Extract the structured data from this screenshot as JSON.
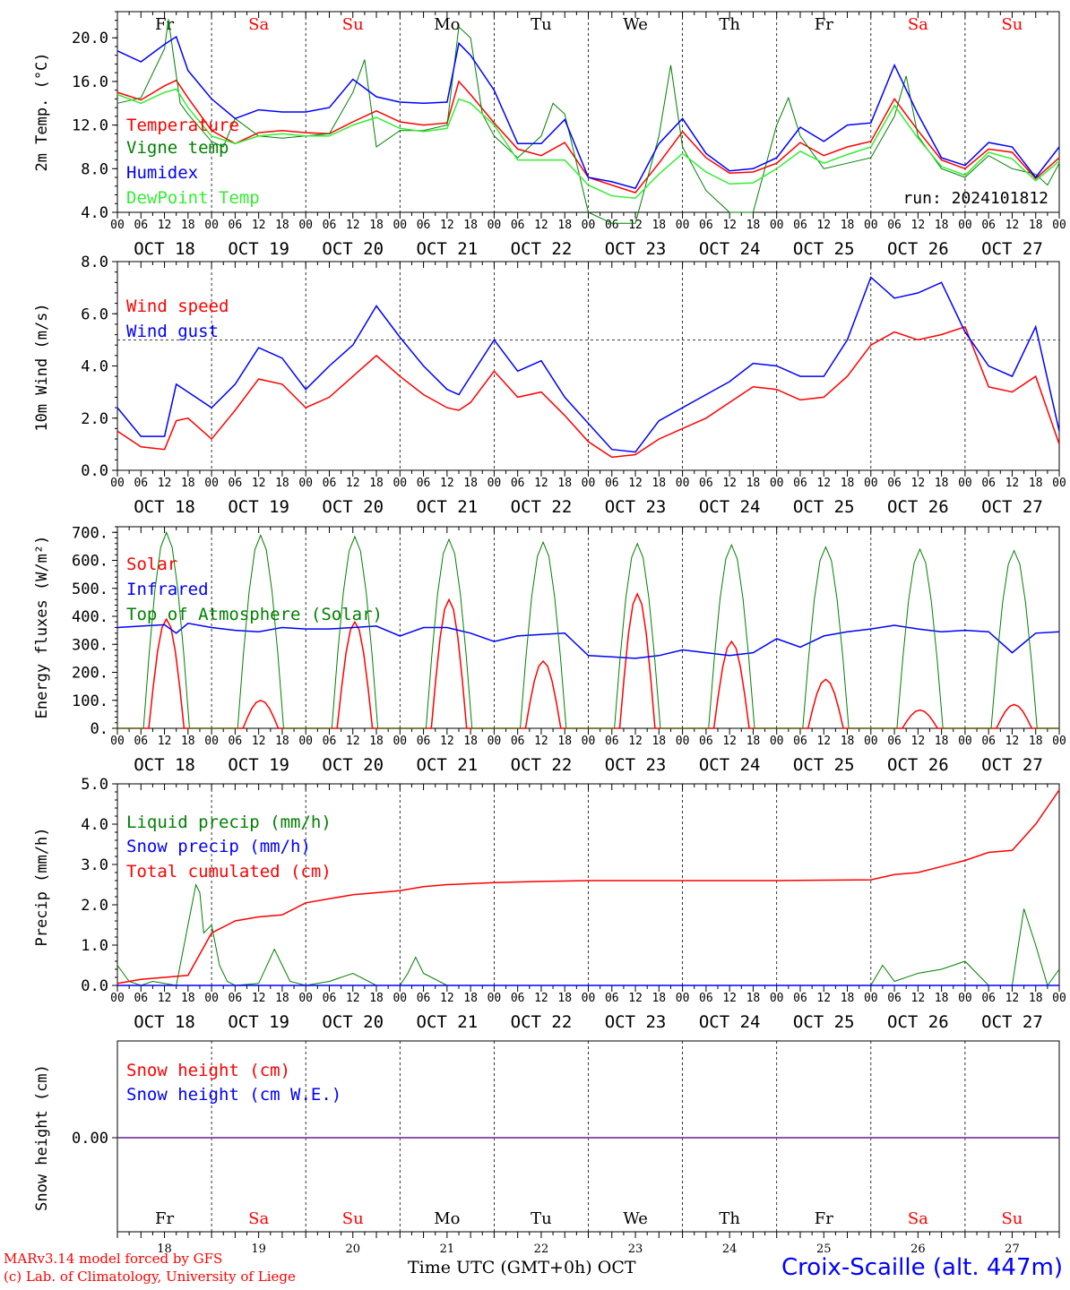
{
  "days": {
    "names": [
      "Fr",
      "Sa",
      "Su",
      "Mo",
      "Tu",
      "We",
      "Th",
      "Fr",
      "Sa",
      "Su"
    ],
    "weekend": [
      false,
      true,
      true,
      false,
      false,
      false,
      false,
      false,
      true,
      true
    ],
    "dates": [
      "OCT 18",
      "OCT 19",
      "OCT 20",
      "OCT 21",
      "OCT 22",
      "OCT 23",
      "OCT 24",
      "OCT 25",
      "OCT 26",
      "OCT 27"
    ],
    "numbers": [
      "18",
      "19",
      "20",
      "21",
      "22",
      "23",
      "24",
      "25",
      "26",
      "27"
    ],
    "hour_ticks": [
      "00",
      "06",
      "12",
      "18"
    ],
    "final_tick": "00"
  },
  "colors": {
    "red": "#ff0000",
    "green": "#008000",
    "blue": "#0000ff",
    "lightgreen": "#33ee33",
    "purple": "#7a3fa0",
    "weekend": "#ff0000"
  },
  "run_label": "run: 2024101812",
  "footer": {
    "model": "MARv3.14 model forced by GFS",
    "copyright": "(c) Lab. of Climatology, University of Liege",
    "axis_title": "Time UTC (GMT+0h)",
    "month": "OCT",
    "station": "Croix-Scaille (alt. 447m)"
  },
  "chart_data": [
    {
      "type": "line",
      "ylabel": "2m Temp. (°C)",
      "ylim": [
        4,
        22.4
      ],
      "yticks": [
        4,
        8,
        12,
        16,
        20
      ],
      "ytick_labels": [
        "4.0",
        "8.0",
        "12.0",
        "16.0",
        "20.0"
      ],
      "x_unit": "hours since OCT 18 00 UTC",
      "series": [
        {
          "name": "Temperature",
          "color": "#ff0000",
          "x": [
            0,
            6,
            12,
            15,
            18,
            24,
            30,
            36,
            42,
            48,
            54,
            60,
            66,
            72,
            78,
            84,
            87,
            90,
            96,
            102,
            108,
            114,
            120,
            126,
            132,
            138,
            144,
            150,
            156,
            162,
            168,
            174,
            180,
            186,
            192,
            198,
            204,
            210,
            216,
            222,
            228,
            234,
            240
          ],
          "y": [
            15,
            14.3,
            15.6,
            16.1,
            14.5,
            11.5,
            10.3,
            11.3,
            11.5,
            11.3,
            11.2,
            12.3,
            13.3,
            12.3,
            12,
            12.2,
            16,
            14.8,
            12.2,
            9.8,
            9.2,
            10.4,
            7.2,
            6.5,
            5.8,
            8.5,
            11.4,
            9,
            7.6,
            7.7,
            8.5,
            10.4,
            9.2,
            10,
            10.5,
            14.4,
            11.5,
            8.8,
            8,
            9.8,
            9.5,
            7.1,
            9
          ]
        },
        {
          "name": "Vigne temp",
          "color": "#008000",
          "x": [
            0,
            6,
            12,
            13,
            16,
            18,
            24,
            27,
            30,
            36,
            42,
            48,
            54,
            60,
            63,
            66,
            72,
            78,
            84,
            87,
            90,
            93,
            96,
            102,
            108,
            111,
            114,
            120,
            126,
            132,
            138,
            141,
            144,
            150,
            156,
            162,
            168,
            171,
            174,
            180,
            186,
            192,
            198,
            201,
            204,
            210,
            216,
            222,
            228,
            234,
            237,
            240
          ],
          "y": [
            14,
            14.5,
            19,
            21.7,
            14,
            13,
            10.5,
            10,
            12.6,
            11,
            10.8,
            11,
            11.2,
            15,
            18,
            10,
            11.5,
            11.5,
            12,
            21,
            20,
            13,
            11,
            9,
            11,
            14,
            13,
            4,
            3,
            3,
            11,
            17.5,
            10,
            6,
            4,
            4,
            12,
            14.5,
            11,
            8,
            8.5,
            9,
            12.8,
            16.5,
            11,
            8,
            7.2,
            9.2,
            8,
            7.5,
            6.5,
            8.5
          ]
        },
        {
          "name": "Humidex",
          "color": "#0000ff",
          "x": [
            0,
            6,
            12,
            15,
            18,
            24,
            30,
            36,
            42,
            48,
            54,
            60,
            66,
            72,
            78,
            84,
            87,
            90,
            96,
            102,
            108,
            114,
            120,
            126,
            132,
            138,
            144,
            150,
            156,
            162,
            168,
            174,
            180,
            186,
            192,
            198,
            204,
            210,
            216,
            222,
            228,
            234,
            240
          ],
          "y": [
            18.8,
            17.8,
            19.4,
            20.1,
            17,
            14.4,
            12.6,
            13.4,
            13.2,
            13.2,
            13.6,
            16.2,
            14.6,
            14.1,
            14,
            14.1,
            19.5,
            18.4,
            15.2,
            10.3,
            10.3,
            12.5,
            7.2,
            6.8,
            6.2,
            10.3,
            12.6,
            9.4,
            7.8,
            8,
            9,
            11.8,
            10.5,
            12,
            12.2,
            17.5,
            13,
            9,
            8.3,
            10.4,
            10,
            7.2,
            10
          ]
        },
        {
          "name": "DewPoint Temp",
          "color": "#33ee33",
          "x": [
            0,
            6,
            12,
            15,
            18,
            24,
            30,
            36,
            42,
            48,
            54,
            60,
            66,
            72,
            78,
            84,
            87,
            90,
            96,
            102,
            108,
            114,
            120,
            126,
            132,
            138,
            144,
            150,
            156,
            162,
            168,
            174,
            180,
            186,
            192,
            198,
            204,
            210,
            216,
            222,
            228,
            234,
            240
          ],
          "y": [
            14.8,
            14,
            15,
            15.3,
            13.6,
            11,
            10.3,
            11,
            11.2,
            11,
            11,
            12,
            12.7,
            11.7,
            11.4,
            11.7,
            14.4,
            14,
            12,
            8.8,
            8.8,
            8.8,
            6.5,
            5.5,
            5.3,
            7.5,
            9.4,
            7.7,
            6.6,
            6.7,
            8,
            9.6,
            8.5,
            9.3,
            10,
            13.8,
            10.8,
            8.2,
            7.4,
            9.5,
            8.9,
            6.9,
            8.7
          ]
        }
      ],
      "legend": [
        "Temperature",
        "Vigne temp",
        "Humidex",
        "DewPoint Temp"
      ]
    },
    {
      "type": "line",
      "ylabel": "10m Wind (m/s)",
      "ylim": [
        0,
        8
      ],
      "yticks": [
        0,
        2,
        4,
        6,
        8
      ],
      "ytick_labels": [
        "0.0",
        "2.0",
        "4.0",
        "6.0",
        "8.0"
      ],
      "reference_line": 5,
      "x_unit": "hours since OCT 18 00 UTC",
      "series": [
        {
          "name": "Wind speed",
          "color": "#ff0000",
          "x": [
            0,
            6,
            12,
            15,
            18,
            24,
            30,
            36,
            42,
            48,
            54,
            60,
            66,
            72,
            78,
            84,
            87,
            90,
            96,
            102,
            108,
            114,
            120,
            126,
            132,
            138,
            144,
            150,
            156,
            162,
            168,
            174,
            180,
            186,
            192,
            198,
            204,
            210,
            216,
            222,
            228,
            234,
            240
          ],
          "y": [
            1.5,
            0.9,
            0.8,
            1.9,
            2,
            1.2,
            2.3,
            3.5,
            3.3,
            2.4,
            2.8,
            3.6,
            4.4,
            3.6,
            2.9,
            2.4,
            2.3,
            2.6,
            3.8,
            2.8,
            3,
            2.1,
            1.1,
            0.5,
            0.6,
            1.2,
            1.6,
            2,
            2.6,
            3.2,
            3.1,
            2.7,
            2.8,
            3.6,
            4.8,
            5.3,
            5,
            5.2,
            5.5,
            3.2,
            3,
            3.6,
            1
          ]
        },
        {
          "name": "Wind gust",
          "color": "#0000ff",
          "x": [
            0,
            6,
            12,
            15,
            18,
            24,
            30,
            36,
            42,
            48,
            54,
            60,
            66,
            72,
            78,
            84,
            87,
            90,
            96,
            102,
            108,
            114,
            120,
            126,
            132,
            138,
            144,
            150,
            156,
            162,
            168,
            174,
            180,
            186,
            192,
            198,
            204,
            210,
            216,
            222,
            228,
            234,
            240
          ],
          "y": [
            2.4,
            1.3,
            1.3,
            3.3,
            3,
            2.4,
            3.3,
            4.7,
            4.3,
            3.1,
            4,
            4.8,
            6.3,
            5.1,
            4,
            3.1,
            2.9,
            3.6,
            5,
            3.8,
            4.2,
            2.8,
            1.8,
            0.8,
            0.7,
            1.9,
            2.4,
            2.9,
            3.4,
            4.1,
            4,
            3.6,
            3.6,
            5,
            7.4,
            6.6,
            6.8,
            7.2,
            5.3,
            4,
            3.6,
            5.5,
            1.5
          ]
        }
      ],
      "legend": [
        "Wind speed",
        "Wind gust"
      ]
    },
    {
      "type": "line",
      "ylabel": "Energy fluxes (W/m²)",
      "ylim": [
        0,
        720
      ],
      "yticks": [
        0,
        100,
        200,
        300,
        400,
        500,
        600,
        700
      ],
      "ytick_labels": [
        "0.",
        "100.",
        "200.",
        "300.",
        "400.",
        "500.",
        "600.",
        "700."
      ],
      "x_unit": "hours since OCT 18 00 UTC",
      "solar_day_peaks": [
        390,
        100,
        380,
        460,
        240,
        480,
        310,
        175,
        65,
        85
      ],
      "toa_day_peaks": [
        700,
        690,
        685,
        675,
        665,
        660,
        655,
        648,
        640,
        635
      ],
      "series": [
        {
          "name": "Solar",
          "color": "#ff0000",
          "note": "daily pulse, zero at night"
        },
        {
          "name": "Infrared",
          "color": "#0000ff",
          "x": [
            0,
            6,
            12,
            15,
            18,
            24,
            30,
            36,
            42,
            48,
            54,
            60,
            66,
            72,
            78,
            84,
            90,
            96,
            102,
            108,
            114,
            120,
            126,
            132,
            138,
            144,
            150,
            156,
            162,
            168,
            174,
            180,
            186,
            192,
            198,
            204,
            210,
            216,
            222,
            228,
            234,
            240
          ],
          "y": [
            360,
            365,
            370,
            340,
            375,
            360,
            350,
            345,
            360,
            355,
            355,
            360,
            365,
            330,
            360,
            360,
            340,
            310,
            330,
            335,
            340,
            260,
            255,
            250,
            260,
            280,
            270,
            260,
            270,
            320,
            290,
            330,
            345,
            355,
            368,
            355,
            345,
            350,
            345,
            270,
            340,
            345
          ]
        },
        {
          "name": "Top of Atmosphere (Solar)",
          "color": "#008000",
          "note": "daily pulse, zero at night"
        }
      ],
      "legend": [
        "Solar",
        "Infrared",
        "Top of Atmosphere (Solar)"
      ]
    },
    {
      "type": "line",
      "ylabel": "Precip (mm/h)",
      "ylim": [
        0,
        5
      ],
      "yticks": [
        0,
        1,
        2,
        3,
        4,
        5
      ],
      "ytick_labels": [
        "0.0",
        "1.0",
        "2.0",
        "3.0",
        "4.0",
        "5.0"
      ],
      "x_unit": "hours since OCT 18 00 UTC",
      "series": [
        {
          "name": "Liquid precip (mm/h)",
          "color": "#008000",
          "x": [
            0,
            3,
            6,
            9,
            12,
            15,
            18,
            20,
            21,
            22,
            24,
            26,
            28,
            30,
            36,
            40,
            42,
            44,
            48,
            54,
            60,
            66,
            72,
            74,
            76,
            78,
            84,
            96,
            120,
            144,
            168,
            180,
            192,
            195,
            198,
            204,
            210,
            216,
            219,
            222,
            228,
            231,
            234,
            237,
            240
          ],
          "y": [
            0.5,
            0.1,
            0,
            0.1,
            0.05,
            0,
            1.5,
            2.5,
            2.3,
            1.3,
            1.5,
            0.5,
            0.1,
            0,
            0.05,
            0.9,
            0.5,
            0.1,
            0,
            0.1,
            0.3,
            0,
            0,
            0.3,
            0.7,
            0.3,
            0,
            0,
            0,
            0,
            0,
            0,
            0,
            0.5,
            0.1,
            0.3,
            0.4,
            0.6,
            0.3,
            0,
            0,
            1.9,
            1,
            0,
            0.4
          ]
        },
        {
          "name": "Snow precip (mm/h)",
          "color": "#0000ff",
          "x": [
            0,
            240
          ],
          "y": [
            0,
            0
          ]
        },
        {
          "name": "Total cumulated (cm)",
          "color": "#ff0000",
          "x": [
            0,
            6,
            12,
            18,
            24,
            30,
            36,
            42,
            48,
            54,
            60,
            66,
            72,
            78,
            84,
            96,
            108,
            120,
            144,
            168,
            192,
            198,
            204,
            210,
            216,
            222,
            228,
            234,
            240
          ],
          "y": [
            0.05,
            0.15,
            0.2,
            0.25,
            1.3,
            1.6,
            1.7,
            1.75,
            2.05,
            2.15,
            2.25,
            2.3,
            2.35,
            2.45,
            2.5,
            2.55,
            2.58,
            2.6,
            2.6,
            2.6,
            2.62,
            2.75,
            2.8,
            2.95,
            3.1,
            3.3,
            3.35,
            4,
            4.85
          ]
        }
      ],
      "legend": [
        "Liquid precip (mm/h)",
        "Snow precip (mm/h)",
        "Total cumulated (cm)"
      ]
    },
    {
      "type": "line",
      "ylabel": "Snow height (cm)",
      "yticks": [
        0
      ],
      "ytick_labels": [
        "0.00"
      ],
      "x_unit": "hours since OCT 18 00 UTC",
      "series": [
        {
          "name": "Snow height (cm)",
          "color": "#ff0000",
          "x": [
            0,
            240
          ],
          "y": [
            0,
            0
          ]
        },
        {
          "name": "Snow height (cm W.E.)",
          "color": "#0000ff",
          "x": [
            0,
            240
          ],
          "y": [
            0,
            0
          ]
        }
      ],
      "legend": [
        "Snow height (cm)",
        "Snow height (cm W.E.)"
      ]
    }
  ]
}
